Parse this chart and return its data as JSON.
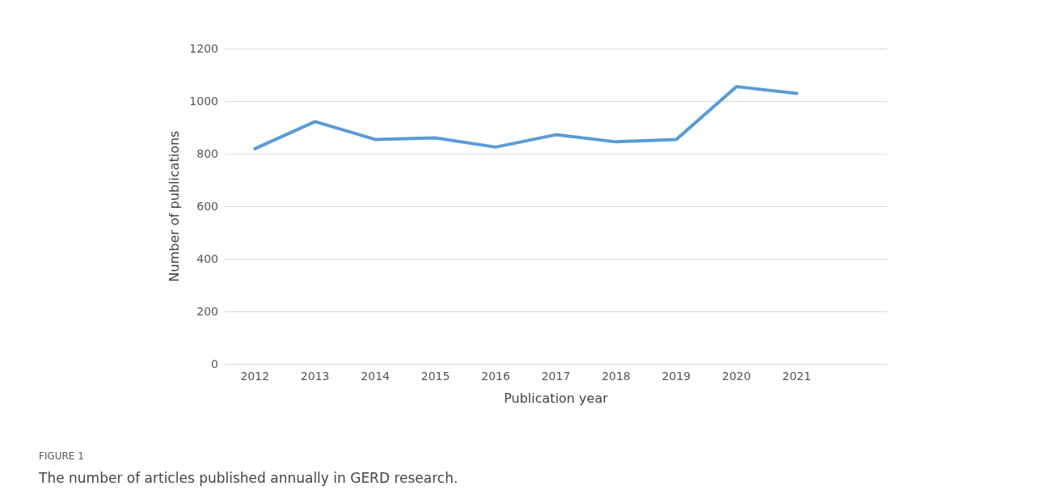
{
  "chart_data": {
    "type": "line",
    "categories": [
      "2012",
      "2013",
      "2014",
      "2015",
      "2016",
      "2017",
      "2018",
      "2019",
      "2020",
      "2021",
      null
    ],
    "series": [
      {
        "color": "#5b9bd5",
        "values": [
          819,
          922,
          854,
          860,
          825,
          872,
          845,
          854,
          1055,
          1029,
          null
        ]
      }
    ],
    "xlabel": "Publication year",
    "ylabel": "Number of publications",
    "ylim": [
      0,
      1200
    ],
    "yticks": [
      0,
      200,
      400,
      600,
      800,
      1000,
      1200
    ],
    "grid": "y",
    "marker": "none",
    "line_style": "solid",
    "annotations": [
      "FIGURE 1",
      "The number of articles published annually in GERD research."
    ]
  }
}
